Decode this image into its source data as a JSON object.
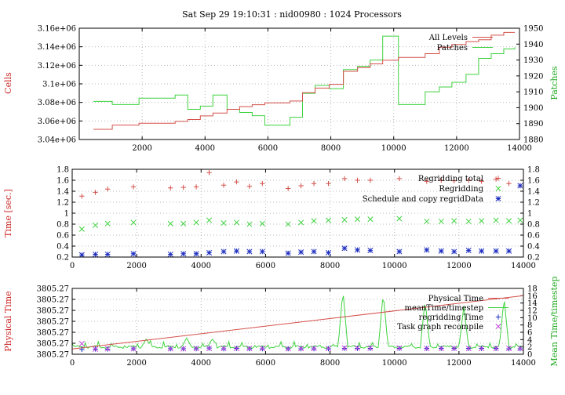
{
  "title": "Sat Sep 29 19:10:31 : nid00980 : 1024 Processors",
  "colors": {
    "red": "#d4504a",
    "green": "#3fd23f",
    "blue": "#1f2fbf",
    "magenta": "#c040d8",
    "grid": "#b8b8b8"
  },
  "chart_data": [
    {
      "id": "panel1",
      "type": "line",
      "xlim": [
        0,
        14000
      ],
      "xticks": [
        2000,
        4000,
        6000,
        8000,
        10000,
        12000,
        14000
      ],
      "ylabel": "Cells",
      "y2label": "Patches",
      "ylim": [
        3040000,
        3160000
      ],
      "y2lim": [
        1880,
        1950
      ],
      "yticks": [
        3040000,
        3060000,
        3080000,
        3100000,
        3120000,
        3140000,
        3160000
      ],
      "yticklabels": [
        "3.04e+06",
        "3.06e+06",
        "3.08e+06",
        "3.1e+06",
        "3.12e+06",
        "3.14e+06",
        "3.16e+06"
      ],
      "y2ticks": [
        1880,
        1890,
        1900,
        1910,
        1920,
        1930,
        1940,
        1950
      ],
      "grid": true,
      "legend_position": "top-right",
      "series": [
        {
          "name": "All Levels",
          "axis": "left",
          "color": "red",
          "step": true,
          "x": [
            450,
            1050,
            1900,
            3050,
            3450,
            3850,
            4250,
            4700,
            5100,
            5500,
            5900,
            6700,
            7100,
            7500,
            7950,
            8400,
            8850,
            9250,
            9650,
            10150,
            11000,
            11450,
            11850,
            12300,
            12700,
            13100,
            13500,
            13850
          ],
          "values": [
            3051000,
            3055500,
            3057500,
            3059500,
            3061500,
            3065500,
            3068500,
            3072500,
            3075500,
            3077500,
            3079500,
            3081500,
            3090500,
            3095500,
            3099500,
            3113500,
            3117500,
            3121500,
            3125500,
            3128500,
            3132500,
            3139500,
            3142500,
            3145500,
            3147500,
            3152500,
            3155500,
            3155500
          ]
        },
        {
          "name": "Patches",
          "axis": "right",
          "color": "green",
          "step": true,
          "x": [
            450,
            1050,
            1900,
            3050,
            3450,
            3850,
            4250,
            4700,
            5100,
            5500,
            5900,
            6700,
            7100,
            7500,
            7950,
            8400,
            8850,
            9250,
            9650,
            10150,
            11000,
            11450,
            11850,
            12300,
            12700,
            13100,
            13500,
            13850
          ],
          "values": [
            1904,
            1902,
            1906,
            1908,
            1899,
            1901,
            1908,
            1899,
            1897,
            1895,
            1889,
            1894,
            1909,
            1914,
            1912,
            1924,
            1926,
            1930,
            1945,
            1902,
            1910,
            1913,
            1916,
            1921,
            1931,
            1934,
            1937,
            1938
          ]
        }
      ]
    },
    {
      "id": "panel2",
      "type": "scatter",
      "xlim": [
        0,
        14000
      ],
      "xticks": [
        0,
        2000,
        4000,
        6000,
        8000,
        10000,
        12000,
        14000
      ],
      "ylabel": "Time [sec.]",
      "ylim": [
        0.2,
        1.8
      ],
      "yticks": [
        0.2,
        0.4,
        0.6,
        0.8,
        1,
        1.2,
        1.4,
        1.6,
        1.8
      ],
      "grid": true,
      "legend_position": "top-right",
      "series": [
        {
          "name": "Regridding total",
          "marker": "plus",
          "color": "red",
          "x": [
            300,
            720,
            1100,
            1900,
            3050,
            3450,
            3850,
            4250,
            4700,
            5100,
            5500,
            5900,
            6700,
            7100,
            7500,
            7950,
            8450,
            8850,
            9250,
            10150,
            11000,
            11450,
            11850,
            12300,
            12700,
            13150,
            13550,
            13900
          ],
          "values": [
            1.31,
            1.38,
            1.44,
            1.48,
            1.46,
            1.47,
            1.48,
            1.74,
            1.51,
            1.57,
            1.49,
            1.54,
            1.45,
            1.5,
            1.54,
            1.54,
            1.63,
            1.6,
            1.6,
            1.63,
            1.58,
            1.6,
            1.59,
            1.6,
            1.58,
            1.62,
            1.54,
            1.5
          ]
        },
        {
          "name": "Regridding",
          "marker": "cross",
          "color": "green",
          "x": [
            300,
            720,
            1100,
            1900,
            3050,
            3450,
            3850,
            4250,
            4700,
            5100,
            5500,
            5900,
            6700,
            7100,
            7500,
            7950,
            8450,
            8850,
            9250,
            10150,
            11000,
            11450,
            11850,
            12300,
            12700,
            13150,
            13550,
            13900
          ],
          "values": [
            0.71,
            0.78,
            0.81,
            0.83,
            0.81,
            0.81,
            0.83,
            0.87,
            0.82,
            0.83,
            0.8,
            0.81,
            0.8,
            0.83,
            0.86,
            0.87,
            0.88,
            0.89,
            0.89,
            0.9,
            0.85,
            0.85,
            0.86,
            0.85,
            0.86,
            0.87,
            0.86,
            0.87
          ]
        },
        {
          "name": "Schedule and copy regridData",
          "marker": "star",
          "color": "blue",
          "x": [
            300,
            720,
            1100,
            1900,
            3050,
            3450,
            3850,
            4250,
            4700,
            5100,
            5500,
            5900,
            6700,
            7100,
            7500,
            7950,
            8450,
            8850,
            9250,
            10150,
            11000,
            11450,
            11850,
            12300,
            12700,
            13150,
            13550,
            13900
          ],
          "values": [
            0.24,
            0.25,
            0.25,
            0.26,
            0.25,
            0.26,
            0.26,
            0.28,
            0.3,
            0.31,
            0.3,
            0.3,
            0.27,
            0.29,
            0.3,
            0.28,
            0.36,
            0.33,
            0.32,
            0.3,
            0.33,
            0.31,
            0.3,
            0.32,
            0.31,
            0.31,
            0.31,
            1.5
          ]
        }
      ]
    },
    {
      "id": "panel3",
      "type": "line",
      "xlim": [
        0,
        14000
      ],
      "xticks": [
        0,
        2000,
        4000,
        6000,
        8000,
        10000,
        12000,
        14000
      ],
      "ylabel": "Physical Time",
      "y2label": "Mean Time/timestep",
      "ytick_labels": [
        "3805.27",
        "3805.27",
        "3805.27",
        "3805.27",
        "3805.27",
        "3805.27",
        "3805.27"
      ],
      "y2lim": [
        0,
        18
      ],
      "y2ticks": [
        0,
        2,
        4,
        6,
        8,
        10,
        12,
        14,
        16,
        18
      ],
      "grid": true,
      "legend_position": "top-right",
      "series": [
        {
          "name": "Physical Time",
          "axis": "left",
          "color": "red",
          "x": [
            0,
            14000
          ],
          "values_normalized": [
            0.08,
            0.89
          ]
        },
        {
          "name": "meanTime/timestep",
          "axis": "right",
          "color": "green",
          "kind": "spiky-line",
          "baseline": 2.0,
          "spikes": [
            {
              "x": 2300,
              "y": 4.2
            },
            {
              "x": 3550,
              "y": 4.5
            },
            {
              "x": 4350,
              "y": 4.3
            },
            {
              "x": 8400,
              "y": 17.5
            },
            {
              "x": 9650,
              "y": 16.8
            },
            {
              "x": 10950,
              "y": 14.8
            },
            {
              "x": 12150,
              "y": 13.0
            },
            {
              "x": 13400,
              "y": 15.3
            }
          ]
        },
        {
          "name": "regridding Time",
          "marker": "plus",
          "axis": "right",
          "color": "blue",
          "x": [
            300,
            720,
            1100,
            1900,
            3050,
            3450,
            3850,
            4250,
            4700,
            5100,
            5500,
            5900,
            6700,
            7100,
            7500,
            7950,
            8450,
            8850,
            9250,
            10150,
            11000,
            11450,
            11850,
            12300,
            12700,
            13150,
            13550,
            13900
          ],
          "values": [
            1.3,
            1.4,
            1.4,
            1.5,
            1.5,
            1.5,
            1.5,
            1.7,
            1.5,
            1.6,
            1.5,
            1.5,
            1.5,
            1.5,
            1.5,
            1.5,
            1.6,
            1.6,
            1.6,
            1.6,
            1.6,
            1.6,
            1.6,
            1.6,
            1.6,
            1.6,
            1.5,
            1.5
          ]
        },
        {
          "name": "Task graph recompile",
          "marker": "cross",
          "axis": "right",
          "color": "magenta",
          "x": [
            300,
            720,
            1100,
            1900,
            3050,
            3450,
            3850,
            4250,
            4700,
            5100,
            5500,
            5900,
            6700,
            7100,
            7500,
            7950,
            8450,
            8850,
            9250,
            10150,
            11000,
            11450,
            11850,
            12300,
            12700,
            13150,
            13550,
            13900
          ],
          "values": [
            2.9,
            1.4,
            1.5,
            1.5,
            1.5,
            1.5,
            1.6,
            1.6,
            1.6,
            1.6,
            1.6,
            1.6,
            1.5,
            1.6,
            1.6,
            1.6,
            1.7,
            1.7,
            1.7,
            1.7,
            1.6,
            1.6,
            1.6,
            1.6,
            1.6,
            1.6,
            1.6,
            1.6
          ]
        }
      ]
    }
  ]
}
